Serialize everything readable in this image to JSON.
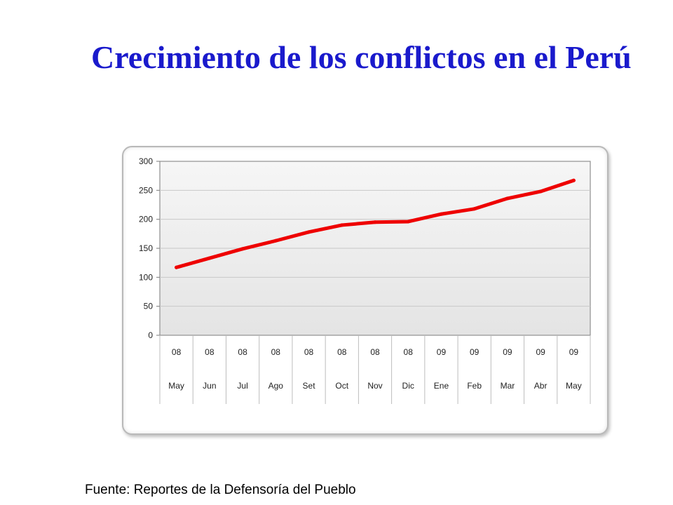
{
  "slide": {
    "title": "Crecimiento de los conflictos en el Perú",
    "source": "Fuente: Reportes de la Defensoría del Pueblo"
  },
  "colors": {
    "title": "#1a1acc",
    "series_line": "#ee0000",
    "plot_background": "#e4e4e4",
    "gridline": "#c8c8c8"
  },
  "chart_data": {
    "type": "line",
    "title": "",
    "xlabel": "",
    "ylabel": "",
    "categories": [
      [
        "08",
        "May"
      ],
      [
        "08",
        "Jun"
      ],
      [
        "08",
        "Jul"
      ],
      [
        "08",
        "Ago"
      ],
      [
        "08",
        "Set"
      ],
      [
        "08",
        "Oct"
      ],
      [
        "08",
        "Nov"
      ],
      [
        "08",
        "Dic"
      ],
      [
        "09",
        "Ene"
      ],
      [
        "09",
        "Feb"
      ],
      [
        "09",
        "Mar"
      ],
      [
        "09",
        "Abr"
      ],
      [
        "09",
        "May"
      ]
    ],
    "values": [
      117,
      133,
      149,
      163,
      178,
      190,
      195,
      196,
      209,
      218,
      236,
      248,
      267
    ],
    "ylim": [
      0,
      300
    ],
    "yticks": [
      "0",
      "50",
      "100",
      "150",
      "200",
      "250",
      "300"
    ],
    "grid": true,
    "legend": "none",
    "category_table": true
  }
}
